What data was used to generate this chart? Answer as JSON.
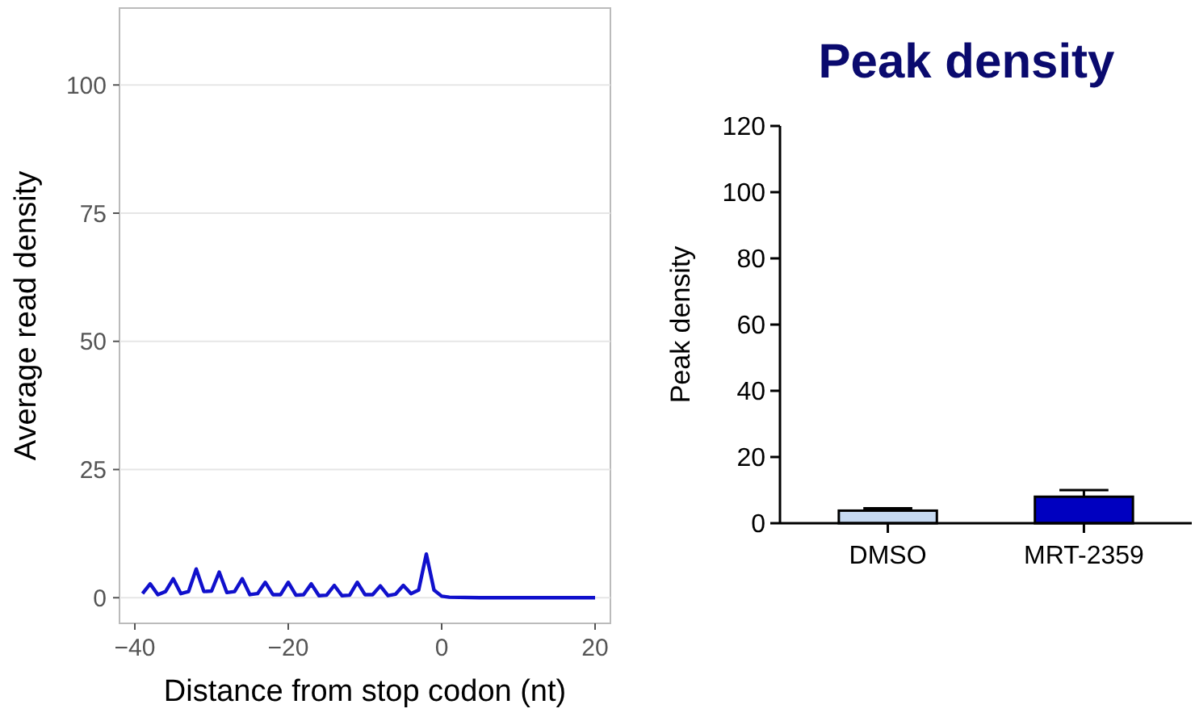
{
  "chart_data": [
    {
      "type": "line",
      "xlabel": "Distance from stop codon (nt)",
      "ylabel": "Average read density",
      "xlim": [
        -42,
        22
      ],
      "xticks": [
        {
          "value": -40,
          "label": "−40"
        },
        {
          "value": -20,
          "label": "−20"
        },
        0,
        20
      ],
      "ylim": [
        -5,
        115
      ],
      "yticks": [
        0,
        25,
        50,
        75,
        100
      ],
      "grid": "y",
      "marker": "none",
      "line_style": "solid",
      "x": [
        -39,
        -38,
        -37,
        -36,
        -35,
        -34,
        -33,
        -32,
        -31,
        -30,
        -29,
        -28,
        -27,
        -26,
        -25,
        -24,
        -23,
        -22,
        -21,
        -20,
        -19,
        -18,
        -17,
        -16,
        -15,
        -14,
        -13,
        -12,
        -11,
        -10,
        -9,
        -8,
        -7,
        -6,
        -5,
        -4,
        -3,
        -2,
        -1,
        0,
        1,
        5,
        10,
        15,
        20
      ],
      "series": [
        {
          "color": "#1010cc",
          "values": [
            0.8,
            2.7,
            0.6,
            1.2,
            3.7,
            0.8,
            1.2,
            5.6,
            1.2,
            1.3,
            5,
            1,
            1.2,
            3.7,
            0.6,
            0.8,
            3,
            0.6,
            0.6,
            3,
            0.5,
            0.6,
            2.7,
            0.4,
            0.5,
            2.4,
            0.4,
            0.5,
            3,
            0.6,
            0.6,
            2.3,
            0.4,
            0.7,
            2.4,
            0.8,
            1.5,
            8.5,
            1.5,
            0.3,
            0.1,
            0,
            0,
            0,
            0
          ]
        }
      ]
    },
    {
      "type": "bar",
      "title": "Peak density",
      "ylabel": "Peak density",
      "categories": [
        "DMSO",
        "MRT-2359"
      ],
      "values": [
        3.8,
        8
      ],
      "colors": [
        "#c6d9f1",
        "#0000c0"
      ],
      "errors": [
        [
          3.8,
          4.5
        ],
        [
          8,
          10
        ]
      ],
      "ylim": [
        0,
        120
      ],
      "yticks": [
        0,
        20,
        40,
        60,
        80,
        100,
        120
      ]
    }
  ]
}
